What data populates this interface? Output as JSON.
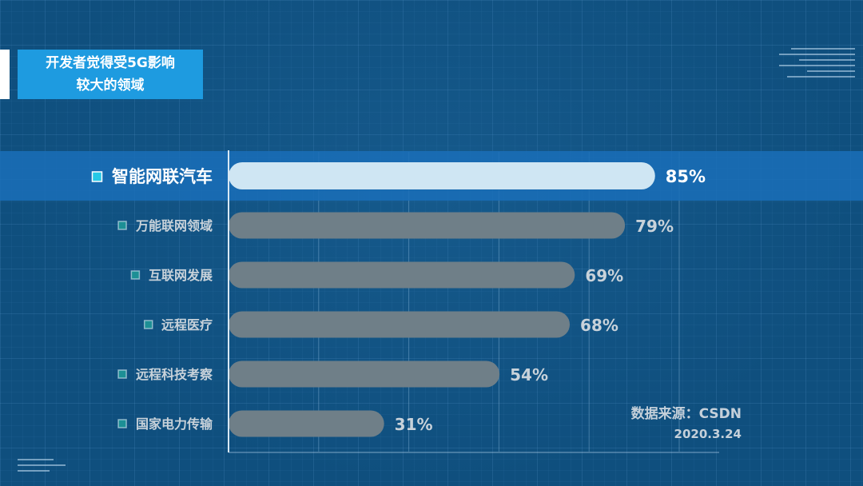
{
  "title": {
    "line1": "开发者觉得受5G影响",
    "line2": "较大的领域"
  },
  "source": {
    "label": "数据来源：CSDN",
    "date": "2020.3.24"
  },
  "colors": {
    "highlight_bar": "#cfe6f3",
    "normal_bar": "#6f7f88",
    "highlight_band": "#1a6fb8",
    "marker_highlight": "#27c9e6",
    "marker_normal": "#1d8f95"
  },
  "chart_data": {
    "type": "bar",
    "orientation": "horizontal",
    "categories": [
      "智能网联汽车",
      "万能联网领域",
      "互联网发展",
      "远程医疗",
      "远程科技考察",
      "国家电力传输"
    ],
    "values": [
      85,
      79,
      69,
      68,
      54,
      31
    ],
    "value_labels": [
      "85%",
      "79%",
      "69%",
      "68%",
      "54%",
      "31%"
    ],
    "highlighted_index": 0,
    "xlim": [
      0,
      100
    ],
    "grid": true
  }
}
